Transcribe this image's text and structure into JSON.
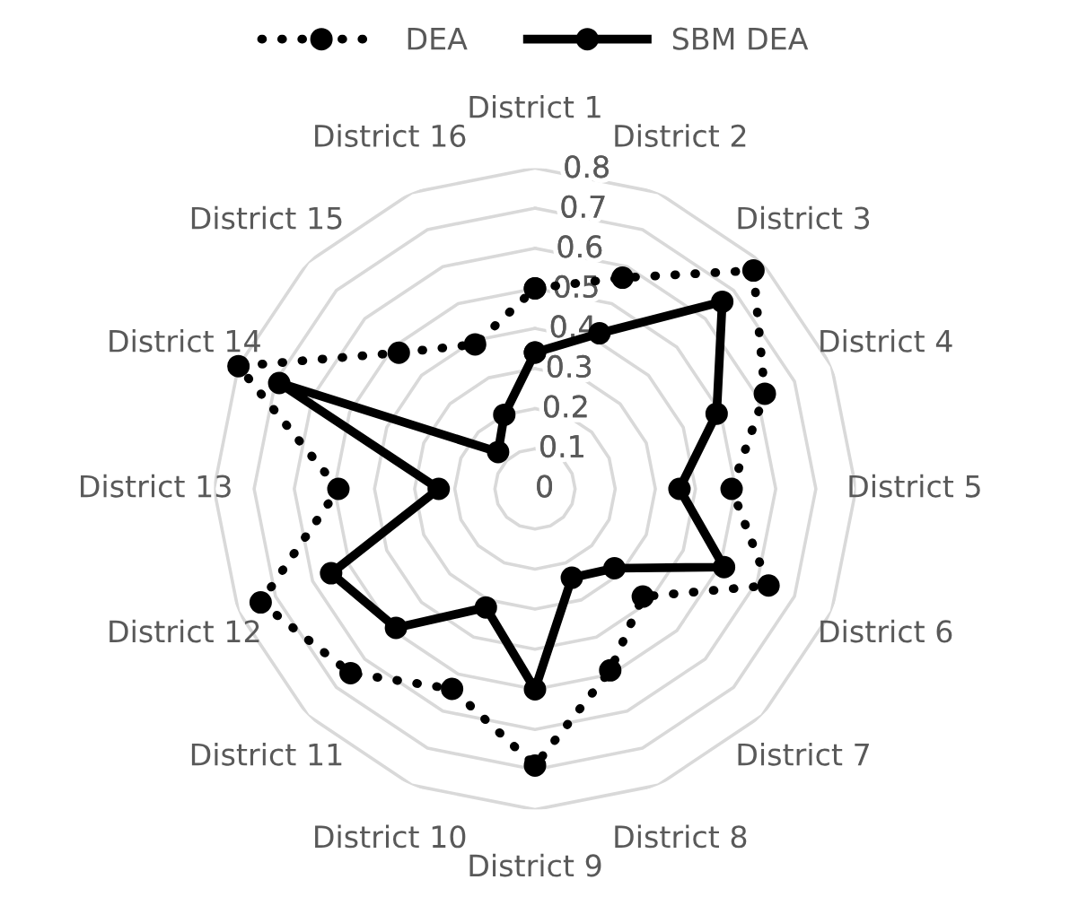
{
  "chart_data": {
    "type": "radar",
    "categories": [
      "District 1",
      "District 2",
      "District 3",
      "District 4",
      "District 5",
      "District 6",
      "District 7",
      "District 8",
      "District 9",
      "District 10",
      "District 11",
      "District 12",
      "District 13",
      "District 14",
      "District 15",
      "District 16"
    ],
    "series": [
      {
        "name": "DEA",
        "color": "#000000",
        "line_style": "dotted",
        "values": [
          0.5,
          0.57,
          0.77,
          0.62,
          0.49,
          0.63,
          0.38,
          0.49,
          0.69,
          0.54,
          0.65,
          0.74,
          0.49,
          0.8,
          0.48,
          0.39
        ]
      },
      {
        "name": "SBM DEA",
        "color": "#000000",
        "line_style": "solid",
        "values": [
          0.34,
          0.42,
          0.66,
          0.49,
          0.36,
          0.51,
          0.28,
          0.24,
          0.5,
          0.32,
          0.49,
          0.55,
          0.24,
          0.69,
          0.13,
          0.2
        ]
      }
    ],
    "ylim": [
      0,
      0.8
    ],
    "yticks": [
      0,
      0.1,
      0.2,
      0.3,
      0.4,
      0.5,
      0.6,
      0.7,
      0.8
    ],
    "grid": true,
    "legend": "top",
    "marker": "circle"
  }
}
